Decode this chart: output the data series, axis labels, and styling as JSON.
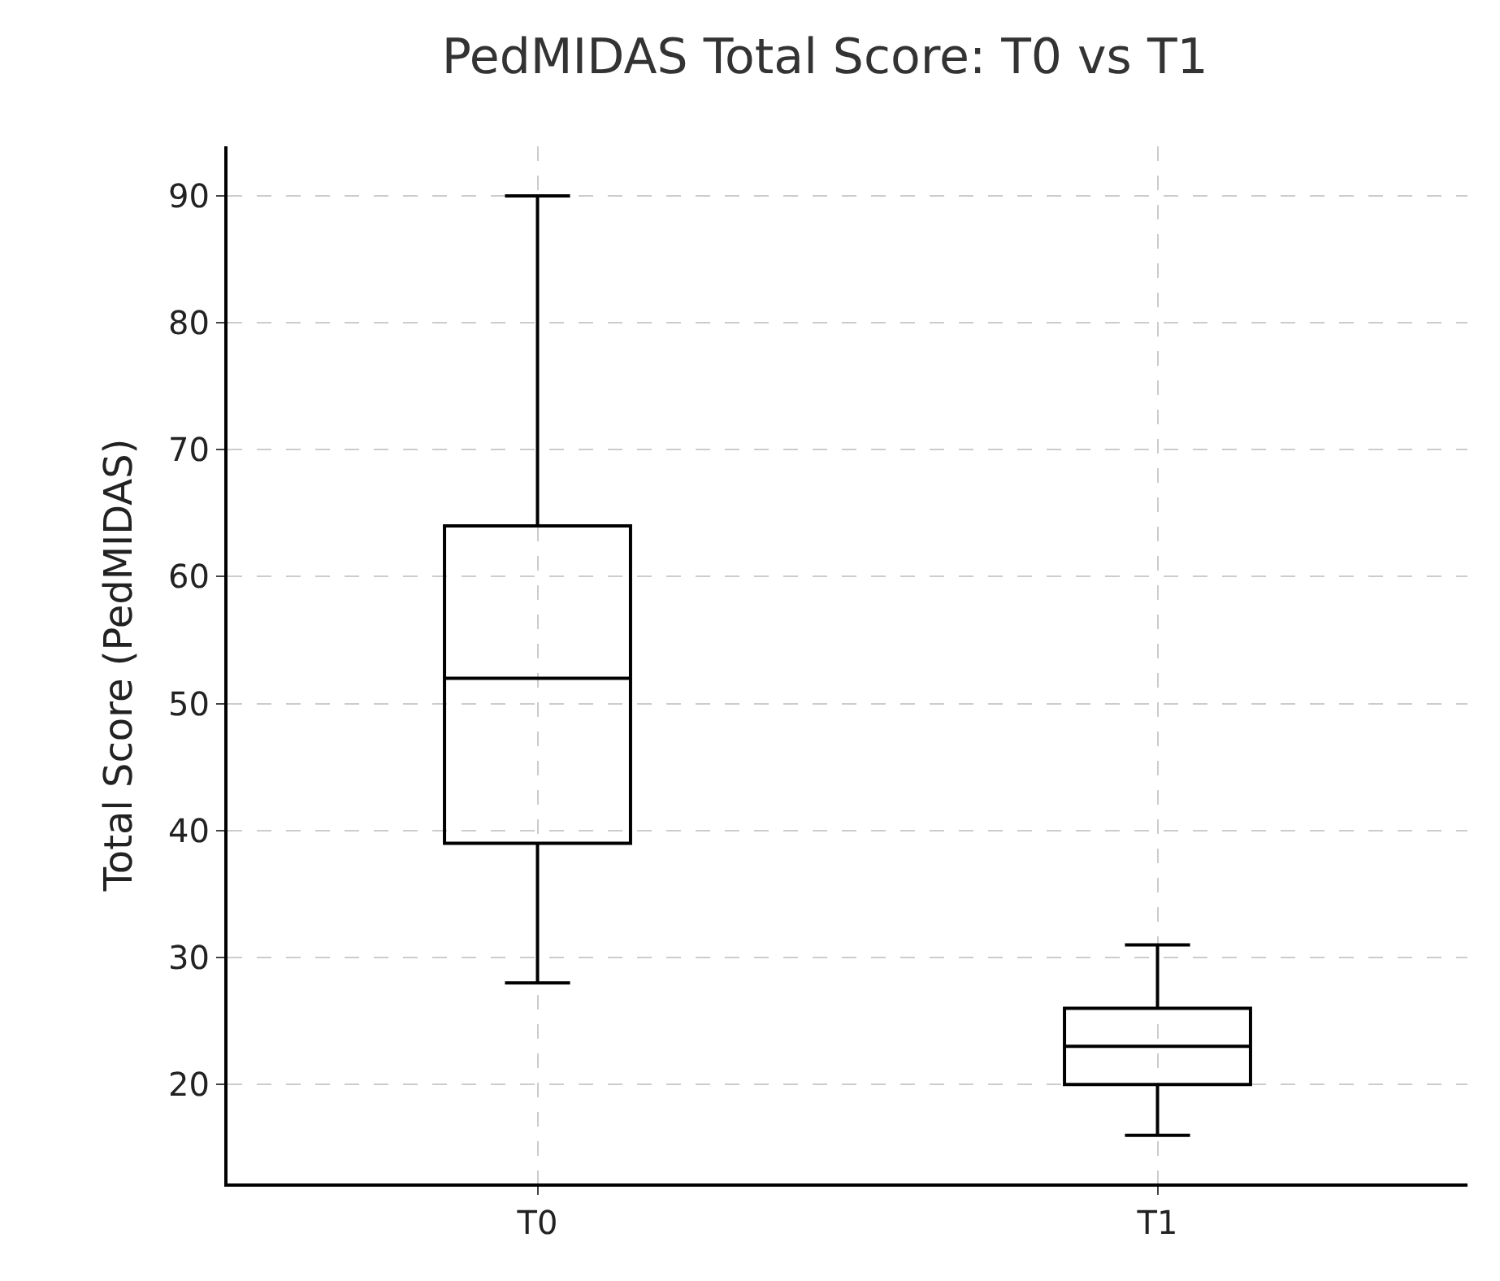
{
  "chart_data": {
    "type": "box",
    "title": "PedMIDAS Total Score: T0 vs T1",
    "ylabel": "Total Score (PedMIDAS)",
    "categories": [
      "T0",
      "T1"
    ],
    "boxes": [
      {
        "low": 28,
        "q1": 39,
        "median": 52,
        "q3": 64,
        "high": 90
      },
      {
        "low": 16,
        "q1": 20,
        "median": 23,
        "q3": 26,
        "high": 31
      }
    ],
    "color": "#000000",
    "ylim": [
      12.2,
      93.9
    ],
    "yticks": [
      20,
      30,
      40,
      50,
      60,
      70,
      80,
      90
    ],
    "grid": true
  }
}
